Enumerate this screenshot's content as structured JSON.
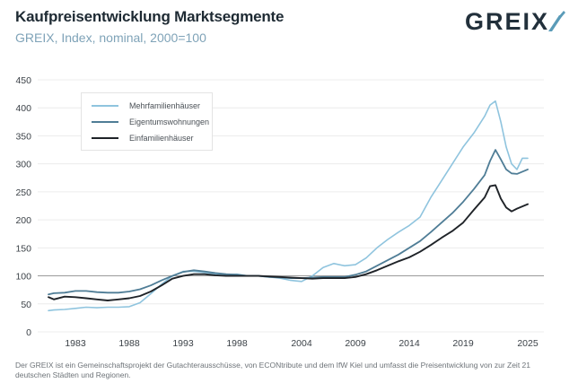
{
  "header": {
    "title": "Kaufpreisentwicklung Marktsegmente",
    "subtitle": "GREIX, Index, nominal, 2000=100",
    "logo_text": "GREIX"
  },
  "footnote": "Der GREIX ist ein Gemeinschaftsprojekt der Gutachterausschüsse, von ECONtribute und dem IfW Kiel und umfasst die Preisentwicklung von zur Zeit 21 deutschen Städten und Regionen.",
  "colors": {
    "mehrfamilienhaeuser": "#8fc4de",
    "eigentumswohnungen": "#4f7d96",
    "einfamilienhaeuser": "#1f2328",
    "grid": "#ececec",
    "baseline": "#9a9a9a"
  },
  "chart_data": {
    "type": "line",
    "title": "Kaufpreisentwicklung Marktsegmente",
    "subtitle": "GREIX, Index, nominal, 2000=100",
    "xlabel": "",
    "ylabel": "",
    "ylim": [
      0,
      450
    ],
    "xlim": [
      1979.5,
      2026.5
    ],
    "y_ticks": [
      0,
      50,
      100,
      150,
      200,
      250,
      300,
      350,
      400,
      450
    ],
    "y_tick_labels": [
      "0",
      "50",
      "100",
      "150",
      "200",
      "250",
      "300",
      "350",
      "400",
      "450"
    ],
    "x_ticks": [
      1983,
      1988,
      1993,
      1998,
      2004,
      2009,
      2014,
      2019,
      2025
    ],
    "x_tick_labels": [
      "1983",
      "1988",
      "1993",
      "1998",
      "2004",
      "2009",
      "2014",
      "2019",
      "2025"
    ],
    "grid": true,
    "reference_line": 100,
    "legend_position": "top-left",
    "x": [
      1980.5,
      1981,
      1982,
      1983,
      1984,
      1985,
      1986,
      1987,
      1988,
      1989,
      1990,
      1991,
      1992,
      1993,
      1994,
      1995,
      1996,
      1997,
      1998,
      1999,
      2000,
      2001,
      2002,
      2003,
      2004,
      2005,
      2006,
      2007,
      2008,
      2009,
      2010,
      2011,
      2012,
      2013,
      2014,
      2015,
      2016,
      2017,
      2018,
      2019,
      2020,
      2021,
      2021.5,
      2022,
      2022.5,
      2023,
      2023.5,
      2024,
      2024.5,
      2025
    ],
    "series": [
      {
        "name": "Mehrfamilienhäuser",
        "values": [
          38,
          39,
          40,
          42,
          44,
          43,
          44,
          44,
          45,
          52,
          68,
          85,
          100,
          108,
          108,
          106,
          103,
          102,
          103,
          100,
          100,
          98,
          96,
          92,
          90,
          100,
          115,
          122,
          118,
          120,
          132,
          150,
          165,
          178,
          190,
          205,
          240,
          270,
          300,
          330,
          355,
          385,
          405,
          412,
          375,
          330,
          300,
          290,
          310,
          310
        ]
      },
      {
        "name": "Eigentumswohnungen",
        "values": [
          67,
          69,
          70,
          73,
          73,
          71,
          70,
          70,
          72,
          76,
          83,
          92,
          100,
          107,
          110,
          108,
          105,
          103,
          102,
          100,
          100,
          98,
          97,
          96,
          96,
          97,
          98,
          98,
          98,
          102,
          108,
          118,
          128,
          138,
          150,
          162,
          178,
          195,
          212,
          232,
          255,
          280,
          305,
          325,
          308,
          290,
          283,
          282,
          286,
          290
        ]
      },
      {
        "name": "Einfamilienhäuser",
        "values": [
          62,
          58,
          63,
          62,
          60,
          58,
          56,
          58,
          60,
          64,
          72,
          83,
          95,
          100,
          103,
          103,
          101,
          100,
          100,
          100,
          100,
          99,
          98,
          97,
          96,
          95,
          96,
          96,
          96,
          98,
          103,
          110,
          118,
          126,
          133,
          143,
          155,
          168,
          180,
          195,
          218,
          240,
          260,
          262,
          238,
          222,
          215,
          220,
          224,
          228
        ]
      }
    ]
  },
  "legend": {
    "items": [
      {
        "label": "Mehrfamilienhäuser"
      },
      {
        "label": "Eigentumswohnungen"
      },
      {
        "label": "Einfamilienhäuser"
      }
    ]
  }
}
